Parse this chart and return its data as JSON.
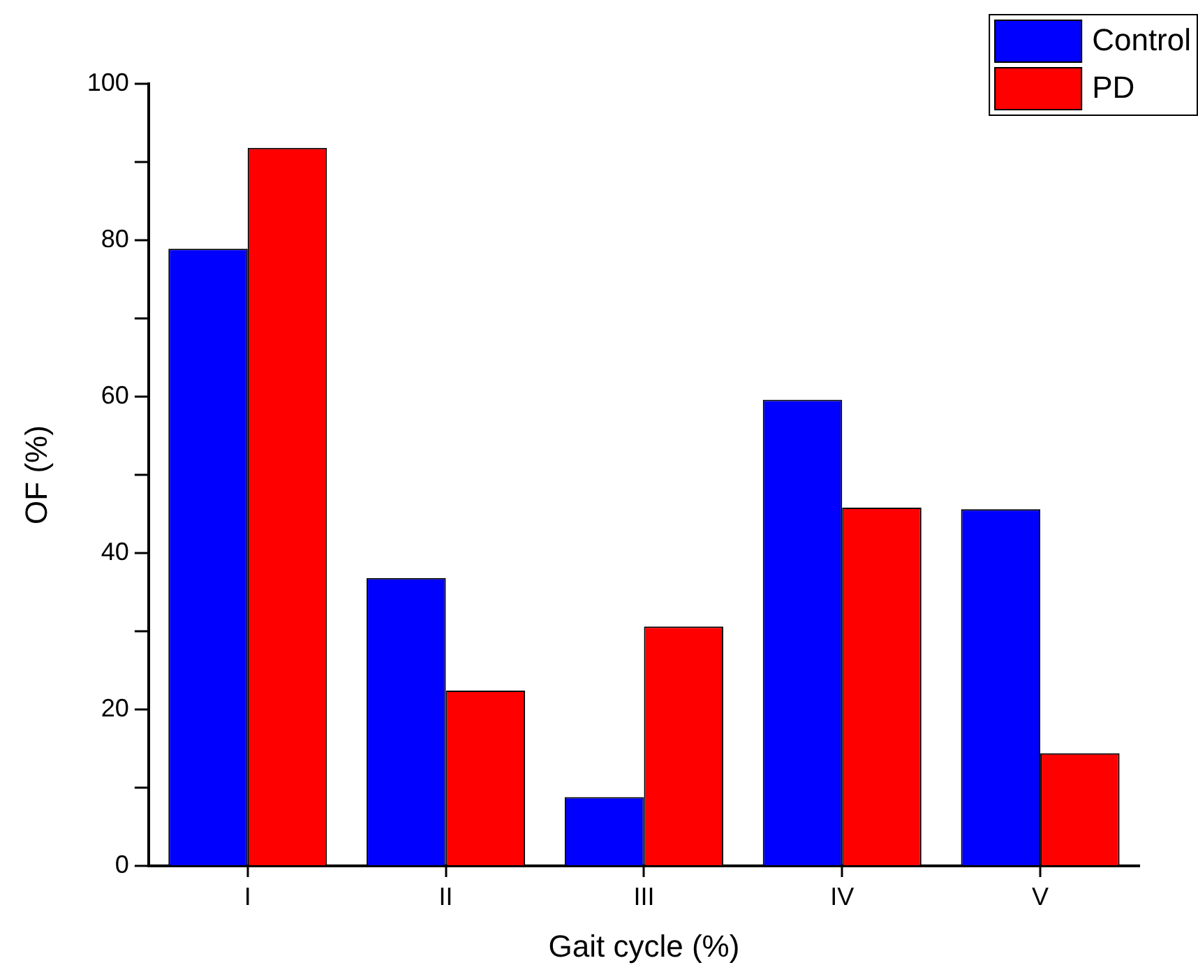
{
  "chart_data": {
    "type": "bar",
    "xlabel": "Gait cycle (%)",
    "ylabel": "OF (%)",
    "categories": [
      "I",
      "II",
      "III",
      "IV",
      "V"
    ],
    "series": [
      {
        "name": "Control",
        "color": "#0000ff",
        "values": [
          78.9,
          36.8,
          8.8,
          59.6,
          45.6
        ]
      },
      {
        "name": "PD",
        "color": "#ff0000",
        "values": [
          91.8,
          22.4,
          30.6,
          45.8,
          14.4
        ]
      }
    ],
    "ylim": [
      0,
      100
    ],
    "yticks": [
      0,
      {
        "value": 10,
        "label": null
      },
      20,
      {
        "value": 30,
        "label": null
      },
      40,
      {
        "value": 50,
        "label": null
      },
      60,
      {
        "value": 70,
        "label": null
      },
      80,
      {
        "value": 90,
        "label": null
      },
      100
    ],
    "grid": false,
    "legend": "top right"
  }
}
